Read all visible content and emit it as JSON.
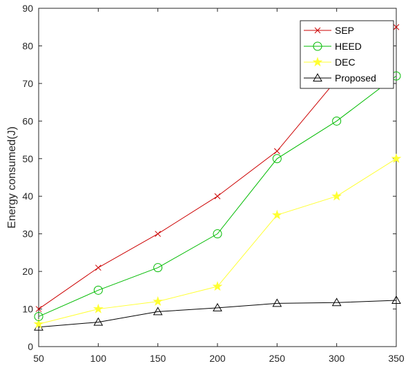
{
  "chart_data": {
    "type": "line",
    "ylabel": "Energy consumed(J)",
    "xlabel": "",
    "xlim": [
      50,
      350
    ],
    "ylim": [
      0,
      90
    ],
    "x_ticks": [
      "50",
      "100",
      "150",
      "200",
      "250",
      "300",
      "350"
    ],
    "y_ticks": [
      "0",
      "10",
      "20",
      "30",
      "40",
      "50",
      "60",
      "70",
      "80",
      "90"
    ],
    "grid": false,
    "legend_position": "top-right",
    "x": [
      50,
      100,
      150,
      200,
      250,
      300,
      350
    ],
    "series": [
      {
        "name": "SEP",
        "color": "#cc0000",
        "marker": "x",
        "values": [
          10,
          21,
          30,
          40,
          52,
          71,
          85
        ]
      },
      {
        "name": "HEED",
        "color": "#00bb00",
        "marker": "circle",
        "values": [
          8,
          15,
          21,
          30,
          50,
          60,
          72
        ]
      },
      {
        "name": "DEC",
        "color": "#ffff33",
        "marker": "star",
        "values": [
          6,
          10,
          12,
          16,
          35,
          40,
          50
        ]
      },
      {
        "name": "Proposed",
        "color": "#000000",
        "marker": "triangle",
        "values": [
          5.2,
          6.5,
          9.3,
          10.3,
          11.5,
          11.7,
          12.3
        ]
      }
    ]
  }
}
